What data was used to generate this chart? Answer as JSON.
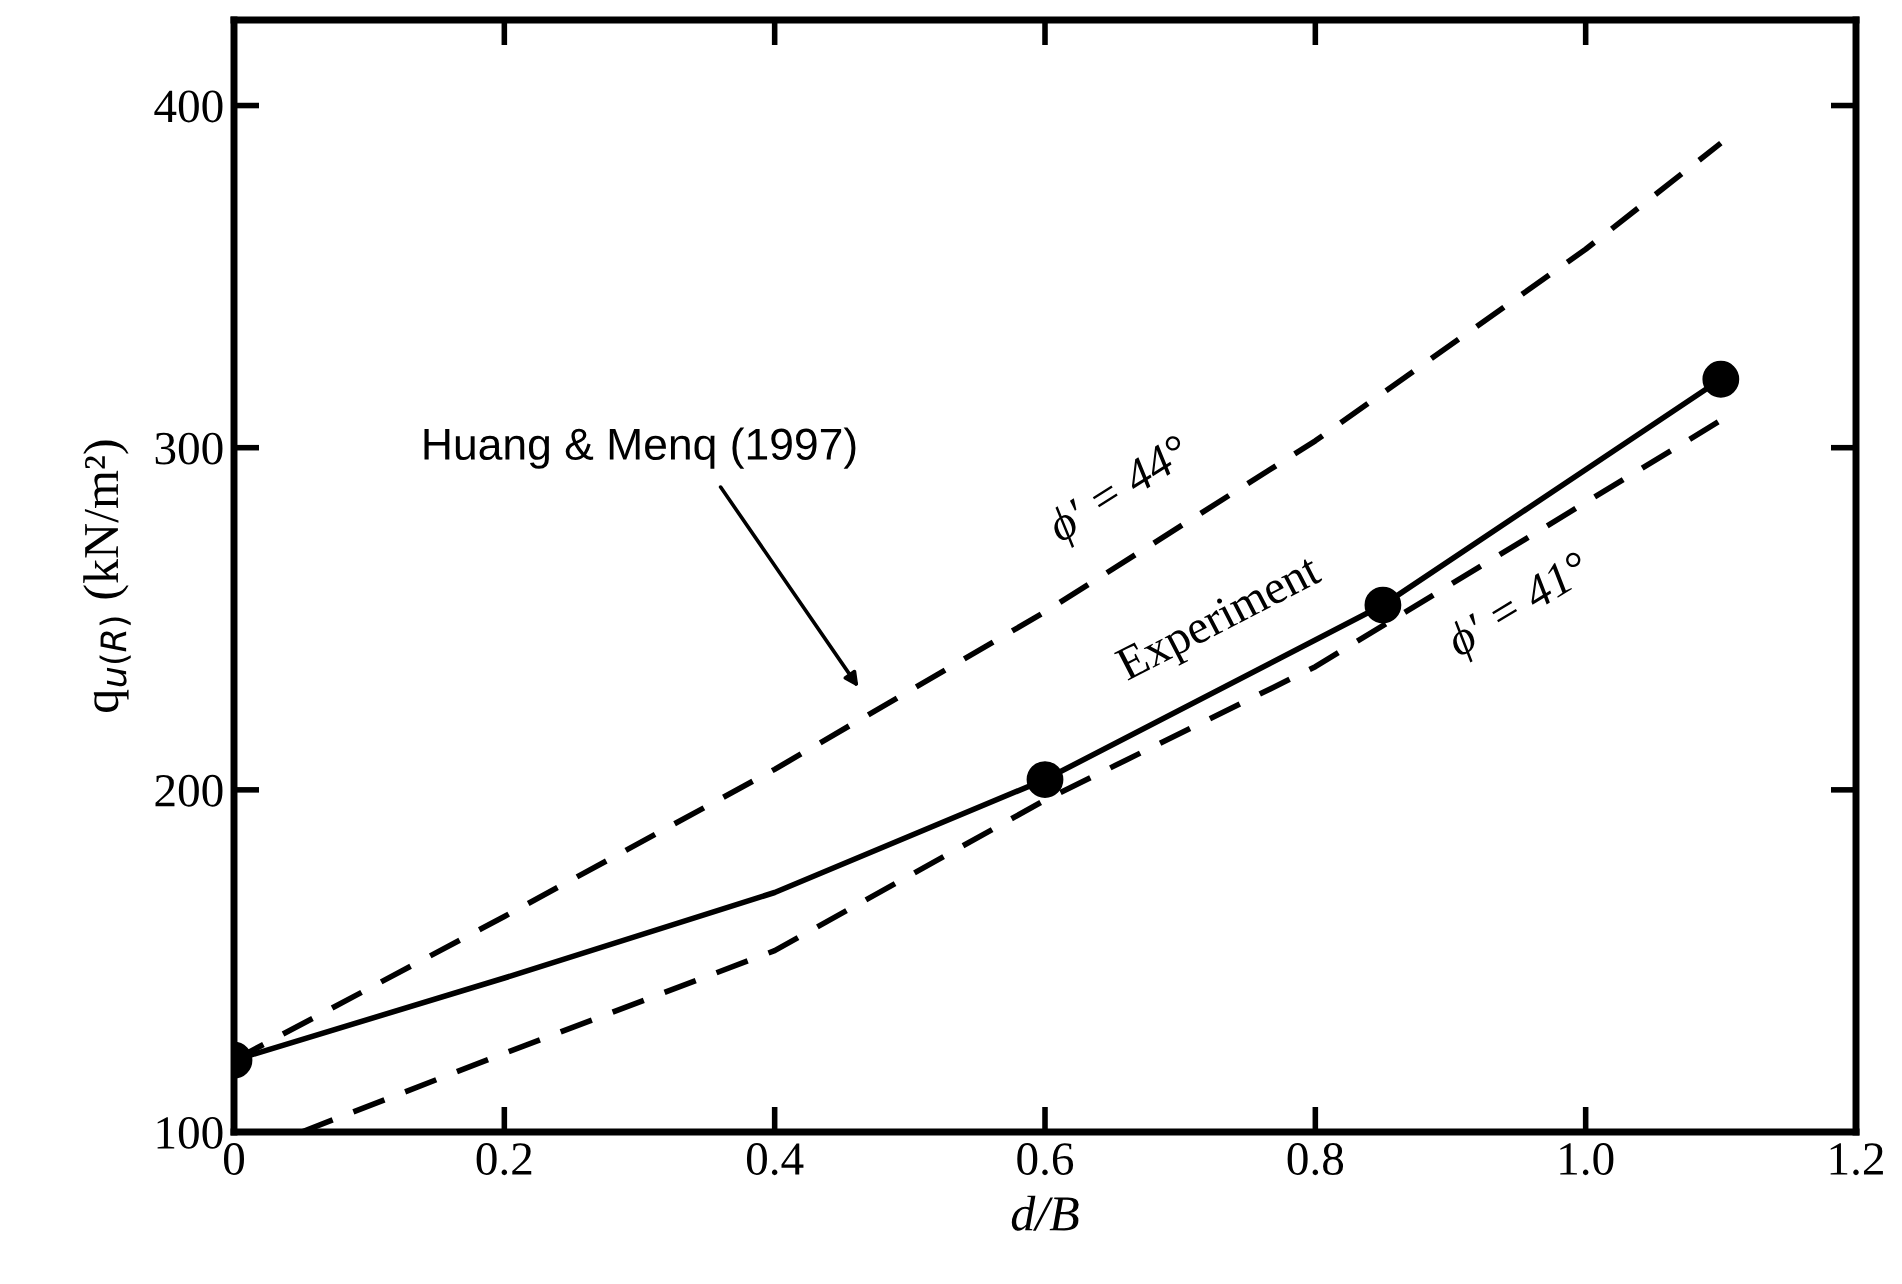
{
  "chart_data": {
    "type": "line",
    "xlabel": "d/B",
    "ylabel": "q$_{u(R)}$ (kN/m²)",
    "xlim": [
      0,
      1.2
    ],
    "ylim": [
      100,
      425
    ],
    "xticks": [
      0,
      0.2,
      0.4,
      0.6,
      0.8,
      {
        "value": 1.0,
        "label": "1.0"
      },
      1.2
    ],
    "yticks": [
      100,
      200,
      300,
      400
    ],
    "grid": false,
    "legend": false,
    "series": [
      {
        "name": "ϕ′ = 44°",
        "color": "#000000",
        "line_style": "dashed",
        "marker": "none",
        "x": [
          0,
          0.2,
          0.4,
          0.6,
          0.8,
          1.0,
          1.1
        ],
        "values": [
          121,
          163,
          206,
          252,
          302,
          358,
          389
        ]
      },
      {
        "name": "Experiment",
        "color": "#000000",
        "line_style": "solid",
        "marker": "none",
        "x": [
          0,
          0.2,
          0.4,
          0.6,
          0.85,
          1.1
        ],
        "values": [
          121,
          145,
          170,
          203,
          254,
          320
        ]
      },
      {
        "name": "ϕ′ = 41°",
        "color": "#000000",
        "line_style": "dashed",
        "marker": "none",
        "x": [
          0.05,
          0.2,
          0.4,
          0.6,
          0.8,
          1.0,
          1.1
        ],
        "values": [
          100,
          123,
          153,
          197,
          236,
          284,
          308
        ]
      },
      {
        "type": "scatter",
        "color": "#000000",
        "marker": "circle",
        "x": [
          0,
          0.6,
          0.85,
          1.1
        ],
        "values": [
          121,
          203,
          254,
          320
        ]
      }
    ],
    "annotations": [
      "Huang & Menq (1997)"
    ]
  }
}
